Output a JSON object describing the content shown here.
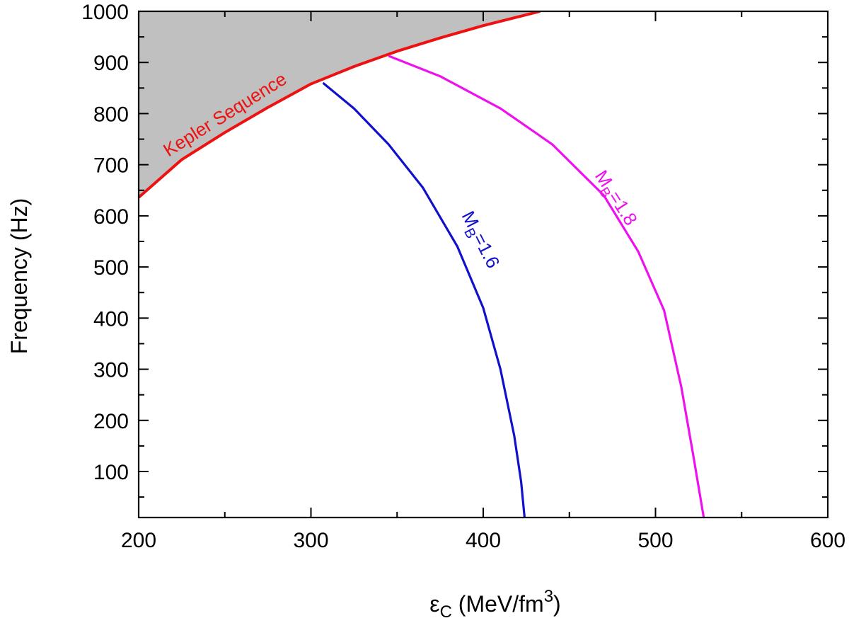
{
  "chart_data": {
    "type": "line",
    "xlabel": {
      "symbol": "ε",
      "subscript": "C",
      "units_prefix": " (MeV/fm",
      "superscript": "3",
      "units_suffix": ")"
    },
    "ylabel": "Frequency (Hz)",
    "xlim": [
      200,
      600
    ],
    "ylim": [
      10,
      1000
    ],
    "x_ticks": [
      200,
      300,
      400,
      500,
      600
    ],
    "y_ticks": [
      100,
      200,
      300,
      400,
      500,
      600,
      700,
      800,
      900,
      1000
    ],
    "x_tick_labels": [
      "200",
      "300",
      "400",
      "500",
      "600"
    ],
    "y_tick_labels": [
      "100",
      "200",
      "300",
      "400",
      "500",
      "600",
      "700",
      "800",
      "900",
      "1000"
    ],
    "grid": false,
    "shaded_region": {
      "label": "region above Kepler sequence",
      "color": "#c0c0c0"
    },
    "series": [
      {
        "name": "Kepler Sequence",
        "color": "#ee1111",
        "label": {
          "text": "Kepler Sequence"
        },
        "x": [
          200,
          225,
          250,
          275,
          300,
          325,
          350,
          375,
          400,
          433
        ],
        "y": [
          636,
          710,
          763,
          812,
          858,
          892,
          922,
          948,
          972,
          1000
        ]
      },
      {
        "name": "MB=1.6",
        "color": "#1111cc",
        "label": {
          "main": "M",
          "sub": "B",
          "rest": "=1.6"
        },
        "x": [
          307,
          325,
          345,
          365,
          385,
          400,
          410,
          418,
          422,
          424
        ],
        "y": [
          860,
          810,
          740,
          655,
          540,
          420,
          300,
          170,
          80,
          10
        ]
      },
      {
        "name": "MB=1.8",
        "color": "#ee11ee",
        "label": {
          "main": "M",
          "sub": "B",
          "rest": "=1.8"
        },
        "x": [
          345,
          375,
          410,
          440,
          470,
          490,
          505,
          515,
          522,
          528
        ],
        "y": [
          913,
          873,
          810,
          740,
          640,
          530,
          415,
          265,
          130,
          10
        ]
      }
    ]
  }
}
